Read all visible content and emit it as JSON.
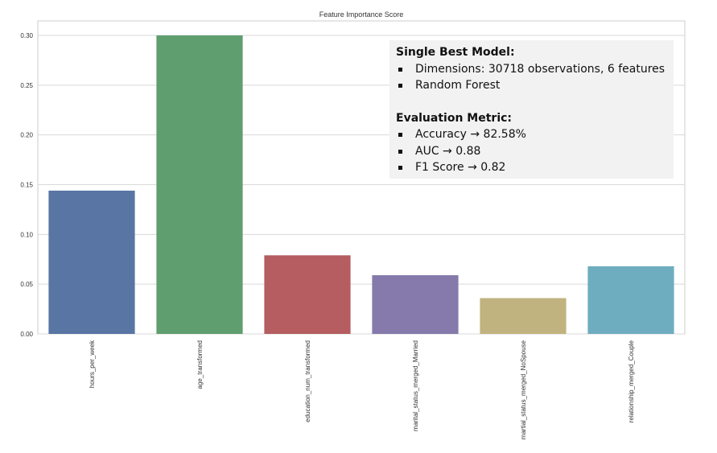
{
  "chart_data": {
    "type": "bar",
    "title": "Feature Importance Score",
    "categories": [
      "hours_per_week",
      "age_transformed",
      "education_num_transformed",
      "marital_status_merged_Married",
      "martial_status_merged_NoSpouse",
      "relationship_merged_Couple"
    ],
    "values": [
      0.144,
      0.3,
      0.079,
      0.059,
      0.036,
      0.068
    ],
    "colors": [
      "#5875a4",
      "#5f9e6e",
      "#b55d60",
      "#857aab",
      "#c1b37f",
      "#6eadc0"
    ],
    "ylim": [
      0,
      0.31
    ],
    "yticks": [
      "0.00",
      "0.05",
      "0.10",
      "0.15",
      "0.20",
      "0.25",
      "0.30"
    ],
    "xlabel": "",
    "ylabel": "",
    "grid": true
  },
  "info_box": {
    "heading1": "Single Best Model:",
    "items1": [
      "Dimensions: 30718 observations, 6 features",
      "Random Forest"
    ],
    "heading2": "Evaluation Metric:",
    "items2": [
      "Accuracy → 82.58%",
      "AUC → 0.88",
      "F1 Score → 0.82"
    ]
  }
}
